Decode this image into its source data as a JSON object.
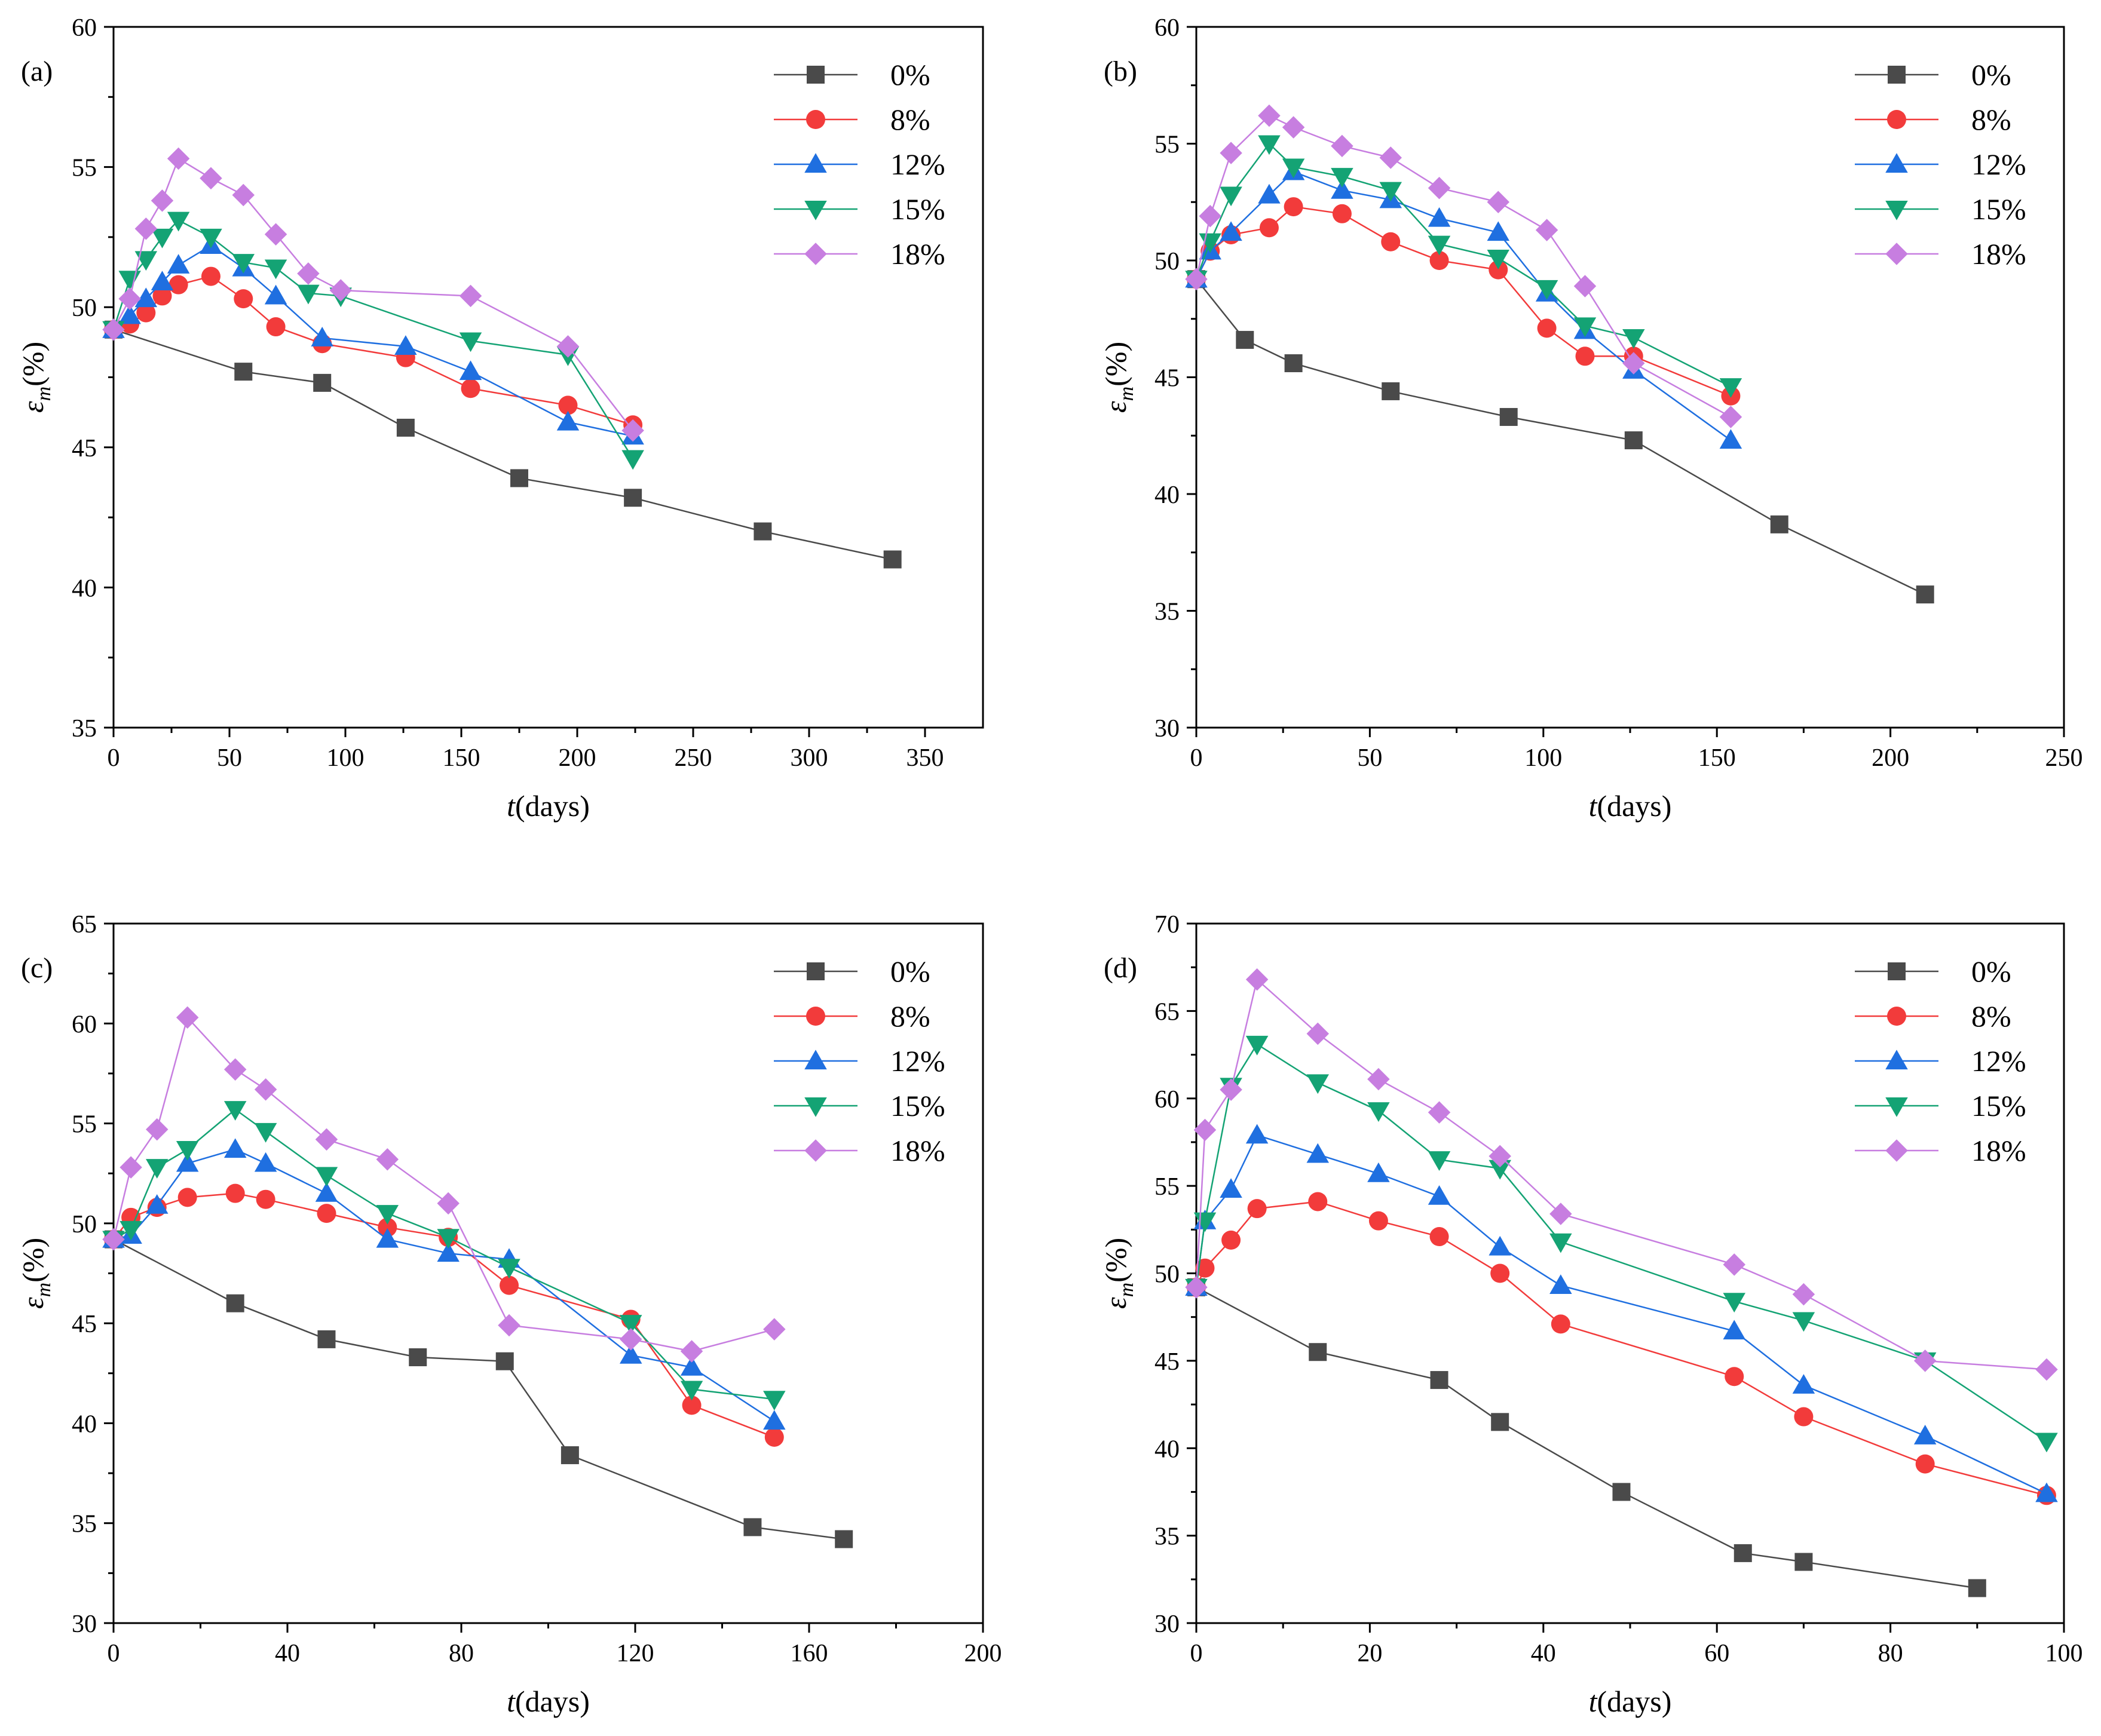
{
  "figure": {
    "series_styles": [
      {
        "name": "0%",
        "color": "#4a4a4a",
        "marker": "square"
      },
      {
        "name": "8%",
        "color": "#f23b3b",
        "marker": "circle"
      },
      {
        "name": "12%",
        "color": "#1f6fe0",
        "marker": "triangle-up"
      },
      {
        "name": "15%",
        "color": "#14a374",
        "marker": "triangle-down"
      },
      {
        "name": "18%",
        "color": "#c77ee0",
        "marker": "diamond"
      }
    ]
  },
  "chart_data": [
    {
      "type": "line",
      "panel_label": "(a)",
      "xlabel_italic": "t",
      "xlabel_rest": "(days)",
      "ylabel_italic": "ε",
      "ylabel_sub": "m",
      "ylabel_rest": "(%)",
      "xlim": [
        0,
        375
      ],
      "ylim": [
        35,
        60
      ],
      "xticks": [
        0,
        50,
        100,
        150,
        200,
        250,
        300,
        350
      ],
      "yticks": [
        35,
        40,
        45,
        50,
        55,
        60
      ],
      "legend_position": "top-right",
      "series": [
        {
          "name": "0%",
          "x": [
            0,
            56,
            90,
            126,
            175,
            224,
            280,
            336
          ],
          "y": [
            49.2,
            47.7,
            47.3,
            45.7,
            43.9,
            43.2,
            42.0,
            41.0
          ]
        },
        {
          "name": "8%",
          "x": [
            0,
            7,
            14,
            21,
            28,
            42,
            56,
            70,
            90,
            126,
            154,
            196,
            224
          ],
          "y": [
            49.2,
            49.4,
            49.8,
            50.4,
            50.8,
            51.1,
            50.3,
            49.3,
            48.7,
            48.2,
            47.1,
            46.5,
            45.8
          ]
        },
        {
          "name": "12%",
          "x": [
            0,
            7,
            14,
            21,
            28,
            42,
            56,
            70,
            90,
            126,
            154,
            196,
            224
          ],
          "y": [
            49.2,
            49.7,
            50.3,
            50.9,
            51.5,
            52.2,
            51.4,
            50.4,
            48.9,
            48.6,
            47.7,
            45.9,
            45.4
          ]
        },
        {
          "name": "15%",
          "x": [
            0,
            7,
            14,
            21,
            28,
            42,
            56,
            70,
            84,
            98,
            154,
            196,
            224
          ],
          "y": [
            49.2,
            51.0,
            51.7,
            52.5,
            53.1,
            52.5,
            51.6,
            51.4,
            50.5,
            50.4,
            48.8,
            48.3,
            44.6
          ]
        },
        {
          "name": "18%",
          "x": [
            0,
            7,
            14,
            21,
            28,
            42,
            56,
            70,
            84,
            98,
            154,
            196,
            224
          ],
          "y": [
            49.2,
            50.3,
            52.8,
            53.8,
            55.3,
            54.6,
            54.0,
            52.6,
            51.2,
            50.6,
            50.4,
            48.6,
            45.6
          ]
        }
      ]
    },
    {
      "type": "line",
      "panel_label": "(b)",
      "xlabel_italic": "t",
      "xlabel_rest": "(days)",
      "ylabel_italic": "ε",
      "ylabel_sub": "m",
      "ylabel_rest": "(%)",
      "xlim": [
        0,
        250
      ],
      "ylim": [
        30,
        60
      ],
      "xticks": [
        0,
        50,
        100,
        150,
        200,
        250
      ],
      "yticks": [
        30,
        35,
        40,
        45,
        50,
        55,
        60
      ],
      "legend_position": "top-right",
      "series": [
        {
          "name": "0%",
          "x": [
            0,
            14,
            28,
            56,
            90,
            126,
            168,
            210
          ],
          "y": [
            49.2,
            46.6,
            45.6,
            44.4,
            43.3,
            42.3,
            38.7,
            35.7
          ]
        },
        {
          "name": "8%",
          "x": [
            0,
            4,
            10,
            21,
            28,
            42,
            56,
            70,
            87,
            101,
            112,
            126,
            154
          ],
          "y": [
            49.2,
            50.4,
            51.1,
            51.4,
            52.3,
            52.0,
            50.8,
            50.0,
            49.6,
            47.1,
            45.9,
            45.9,
            44.2
          ]
        },
        {
          "name": "12%",
          "x": [
            0,
            4,
            10,
            21,
            28,
            42,
            56,
            70,
            87,
            101,
            112,
            126,
            154
          ],
          "y": [
            49.2,
            50.4,
            51.2,
            52.8,
            53.8,
            53.0,
            52.6,
            51.8,
            51.2,
            48.6,
            47.0,
            45.3,
            42.3
          ]
        },
        {
          "name": "15%",
          "x": [
            0,
            4,
            10,
            21,
            28,
            42,
            56,
            70,
            87,
            101,
            112,
            126,
            154
          ],
          "y": [
            49.2,
            50.8,
            52.8,
            55.0,
            54.0,
            53.6,
            53.0,
            50.7,
            50.1,
            48.8,
            47.2,
            46.7,
            44.6
          ]
        },
        {
          "name": "18%",
          "x": [
            0,
            4,
            10,
            21,
            28,
            42,
            56,
            70,
            87,
            101,
            112,
            126,
            154
          ],
          "y": [
            49.2,
            51.9,
            54.6,
            56.2,
            55.7,
            54.9,
            54.4,
            53.1,
            52.5,
            51.3,
            48.9,
            45.6,
            43.3
          ]
        }
      ]
    },
    {
      "type": "line",
      "panel_label": "(c)",
      "xlabel_italic": "t",
      "xlabel_rest": "(days)",
      "ylabel_italic": "ε",
      "ylabel_sub": "m",
      "ylabel_rest": "(%)",
      "xlim": [
        0,
        200
      ],
      "ylim": [
        30,
        65
      ],
      "xticks": [
        0,
        40,
        80,
        120,
        160,
        200
      ],
      "yticks": [
        30,
        35,
        40,
        45,
        50,
        55,
        60,
        65
      ],
      "legend_position": "top-right",
      "series": [
        {
          "name": "0%",
          "x": [
            0,
            28,
            49,
            70,
            90,
            105,
            147,
            168
          ],
          "y": [
            49.2,
            46.0,
            44.2,
            43.3,
            43.1,
            38.4,
            34.8,
            34.2
          ]
        },
        {
          "name": "8%",
          "x": [
            0,
            4,
            10,
            17,
            28,
            35,
            49,
            63,
            77,
            91,
            119,
            133,
            152
          ],
          "y": [
            49.2,
            50.3,
            50.8,
            51.3,
            51.5,
            51.2,
            50.5,
            49.8,
            49.3,
            46.9,
            45.2,
            40.9,
            39.3
          ]
        },
        {
          "name": "12%",
          "x": [
            0,
            4,
            10,
            17,
            28,
            35,
            49,
            63,
            77,
            91,
            119,
            133,
            152
          ],
          "y": [
            49.2,
            49.4,
            50.9,
            53.0,
            53.7,
            53.0,
            51.5,
            49.2,
            48.5,
            48.2,
            43.4,
            42.8,
            40.1
          ]
        },
        {
          "name": "15%",
          "x": [
            0,
            4,
            10,
            17,
            28,
            35,
            49,
            63,
            77,
            91,
            119,
            133,
            152
          ],
          "y": [
            49.2,
            49.7,
            52.8,
            53.7,
            55.7,
            54.6,
            52.4,
            50.5,
            49.3,
            47.8,
            45.0,
            41.7,
            41.2
          ]
        },
        {
          "name": "18%",
          "x": [
            0,
            4,
            10,
            17,
            28,
            35,
            49,
            63,
            77,
            91,
            119,
            133,
            152
          ],
          "y": [
            49.2,
            52.8,
            54.7,
            60.3,
            57.7,
            56.7,
            54.2,
            53.2,
            51.0,
            44.9,
            44.2,
            43.6,
            44.7
          ]
        }
      ]
    },
    {
      "type": "line",
      "panel_label": "(d)",
      "xlabel_italic": "t",
      "xlabel_rest": "(days)",
      "ylabel_italic": "ε",
      "ylabel_sub": "m",
      "ylabel_rest": "(%)",
      "xlim": [
        0,
        100
      ],
      "ylim": [
        30,
        70
      ],
      "xticks": [
        0,
        20,
        40,
        60,
        80,
        100
      ],
      "yticks": [
        30,
        35,
        40,
        45,
        50,
        55,
        60,
        65,
        70
      ],
      "legend_position": "top-right",
      "series": [
        {
          "name": "0%",
          "x": [
            0,
            14,
            28,
            35,
            49,
            63,
            70,
            90
          ],
          "y": [
            49.2,
            45.5,
            43.9,
            41.5,
            37.5,
            34.0,
            33.5,
            32.0
          ]
        },
        {
          "name": "8%",
          "x": [
            0,
            1,
            4,
            7,
            14,
            21,
            28,
            35,
            42,
            62,
            70,
            84,
            98
          ],
          "y": [
            49.2,
            50.3,
            51.9,
            53.7,
            54.1,
            53.0,
            52.1,
            50.0,
            47.1,
            44.1,
            41.8,
            39.1,
            37.3
          ]
        },
        {
          "name": "12%",
          "x": [
            0,
            1,
            4,
            7,
            14,
            21,
            28,
            35,
            42,
            62,
            70,
            84,
            98
          ],
          "y": [
            49.2,
            53.0,
            54.8,
            57.9,
            56.8,
            55.7,
            54.4,
            51.5,
            49.3,
            46.7,
            43.6,
            40.7,
            37.4
          ]
        },
        {
          "name": "15%",
          "x": [
            0,
            1,
            4,
            7,
            14,
            21,
            28,
            35,
            42,
            62,
            70,
            84,
            98
          ],
          "y": [
            49.2,
            53.0,
            60.7,
            63.1,
            60.9,
            59.3,
            56.5,
            56.0,
            51.8,
            48.4,
            47.3,
            45.0,
            40.4
          ]
        },
        {
          "name": "18%",
          "x": [
            0,
            1,
            4,
            7,
            14,
            21,
            28,
            35,
            42,
            62,
            70,
            84,
            98
          ],
          "y": [
            49.2,
            58.2,
            60.5,
            66.8,
            63.7,
            61.1,
            59.2,
            56.7,
            53.4,
            50.5,
            48.8,
            45.0,
            44.5
          ]
        }
      ]
    }
  ]
}
